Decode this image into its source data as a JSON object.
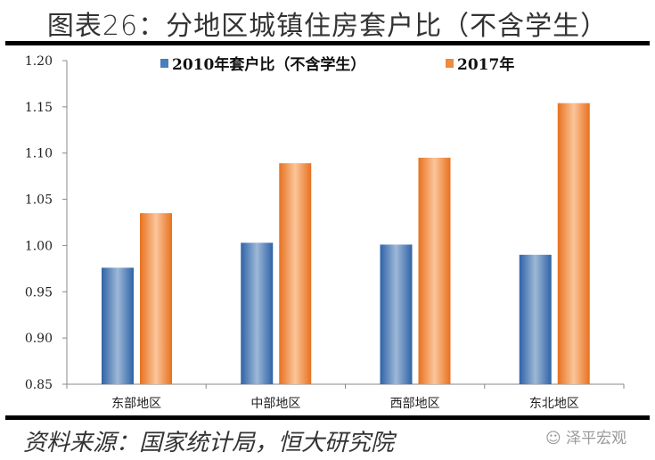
{
  "title": "图表26：分地区城镇住房套户比（不含学生）",
  "source": "资料来源：国家统计局，恒大研究院",
  "watermark": "泽平宏观",
  "chart_data": {
    "type": "bar",
    "title": "",
    "xlabel": "",
    "ylabel": "",
    "categories": [
      "东部地区",
      "中部地区",
      "西部地区",
      "东北地区"
    ],
    "series": [
      {
        "name": "2010年套户比（不含学生）",
        "values": [
          0.976,
          1.003,
          1.001,
          0.99
        ],
        "color": "#4A7EBB"
      },
      {
        "name": "2017年",
        "values": [
          1.035,
          1.089,
          1.095,
          1.154
        ],
        "color": "#F08A3C"
      }
    ],
    "ylim": [
      0.85,
      1.2
    ],
    "yticks": [
      "0.85",
      "0.90",
      "0.95",
      "1.00",
      "1.05",
      "1.10",
      "1.15",
      "1.20"
    ],
    "grid": false,
    "legend": "top"
  }
}
